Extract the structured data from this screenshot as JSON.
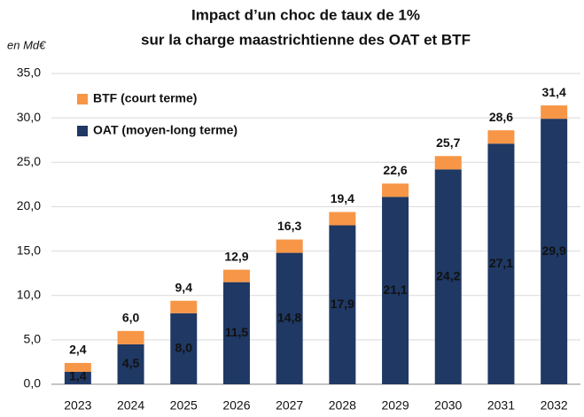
{
  "chart_data": {
    "type": "stacked_bar",
    "title_lines": [
      "Impact d’un choc de taux de 1%",
      "sur la charge maastrichtienne des OAT et BTF"
    ],
    "y_unit_label": "en Md€",
    "categories": [
      "2023",
      "2024",
      "2025",
      "2026",
      "2027",
      "2028",
      "2029",
      "2030",
      "2031",
      "2032"
    ],
    "series": [
      {
        "name": "OAT (moyen-long terme)",
        "color": "#1f3864",
        "values": [
          1.4,
          4.5,
          8.0,
          11.5,
          14.8,
          17.9,
          21.1,
          24.2,
          27.1,
          29.9
        ],
        "value_labels": [
          "1,4",
          "4,5",
          "8,0",
          "11,5",
          "14,8",
          "17,9",
          "21,1",
          "24,2",
          "27,1",
          "29,9"
        ]
      },
      {
        "name": "BTF (court terme)",
        "color": "#f79646",
        "values": [
          1.0,
          1.5,
          1.4,
          1.4,
          1.5,
          1.5,
          1.5,
          1.5,
          1.5,
          1.5
        ]
      }
    ],
    "totals": [
      2.4,
      6.0,
      9.4,
      12.9,
      16.3,
      19.4,
      22.6,
      25.7,
      28.6,
      31.4
    ],
    "total_labels": [
      "2,4",
      "6,0",
      "9,4",
      "12,9",
      "16,3",
      "19,4",
      "22,6",
      "25,7",
      "28,6",
      "31,4"
    ],
    "ylim": [
      0,
      35
    ],
    "yticks": [
      {
        "value": 0,
        "label": "0,0"
      },
      {
        "value": 5,
        "label": "5,0"
      },
      {
        "value": 10,
        "label": "10,0"
      },
      {
        "value": 15,
        "label": "15,0"
      },
      {
        "value": 20,
        "label": "20,0"
      },
      {
        "value": 25,
        "label": "25,0"
      },
      {
        "value": 30,
        "label": "30,0"
      },
      {
        "value": 35,
        "label": "35,0"
      }
    ],
    "grid": true,
    "legend": "upper left"
  }
}
